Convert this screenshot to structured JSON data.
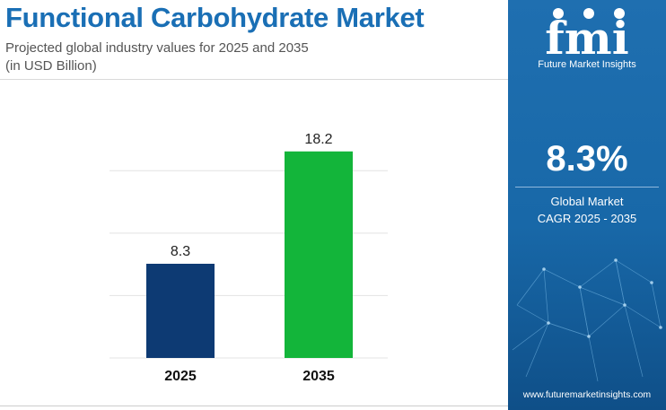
{
  "header": {
    "title": "Functional Carbohydrate Market",
    "subtitle_line1": "Projected global industry values for 2025 and 2035",
    "subtitle_line2": "(in USD Billion)"
  },
  "chart_data": {
    "type": "bar",
    "categories": [
      "2025",
      "2035"
    ],
    "values": [
      8.3,
      18.2
    ],
    "value_labels": [
      "8.3",
      "18.2"
    ],
    "bar_colors": [
      "#0d3a73",
      "#13b53a"
    ],
    "title": "",
    "xlabel": "",
    "ylabel": "",
    "ylim": [
      0,
      20
    ],
    "grid": true,
    "legend": "none"
  },
  "sidebar": {
    "logo_text": "fmi",
    "logo_caption": "Future Market Insights",
    "cagr_value": "8.3%",
    "cagr_label_line1": "Global Market",
    "cagr_label_line2": "CAGR 2025 - 2035",
    "website": "www.futuremarketinsights.com",
    "colors": {
      "background": "#1a6aac",
      "accent": "#ffffff"
    }
  }
}
